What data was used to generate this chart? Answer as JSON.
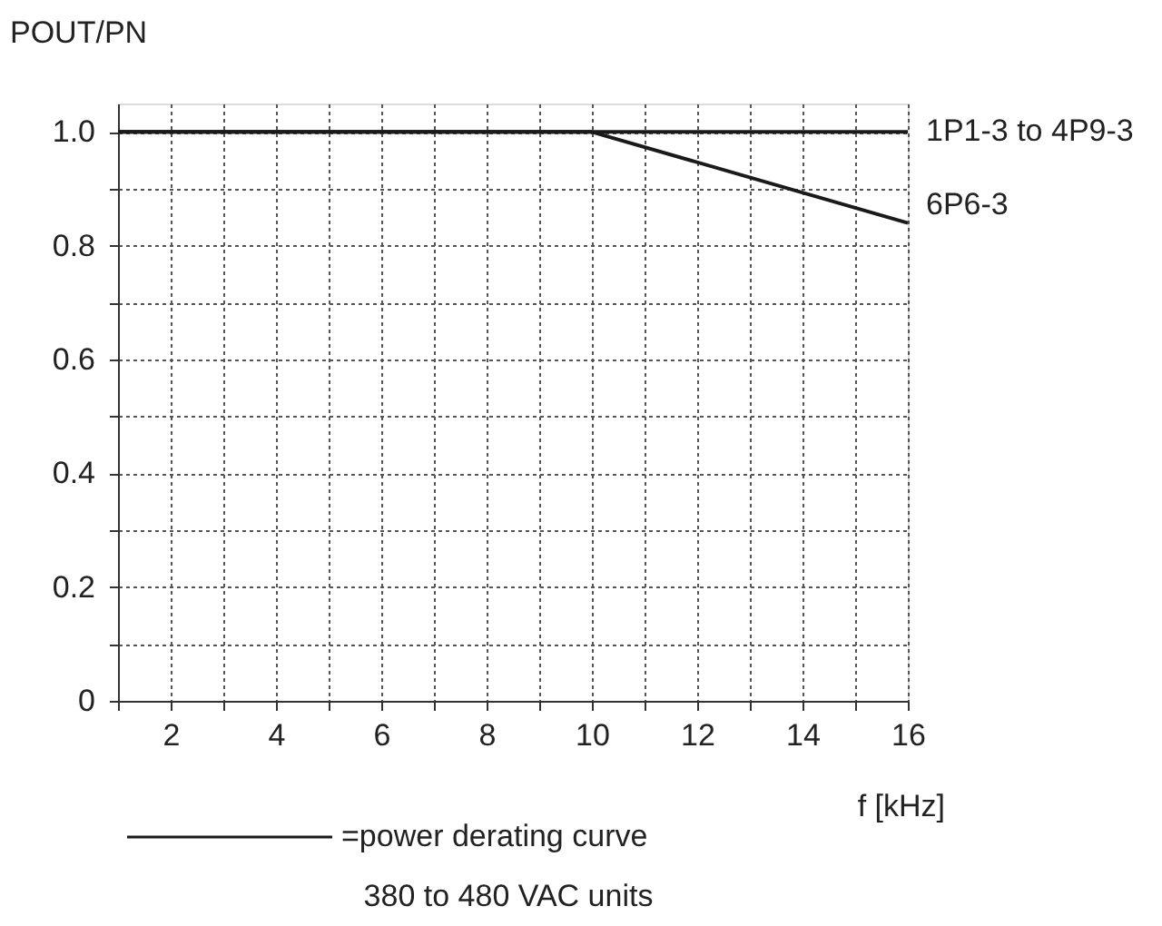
{
  "chart_data": {
    "type": "line",
    "ylabel": "POUT/PN",
    "xlabel": "f [kHz]",
    "x": [
      1,
      10,
      16
    ],
    "series": [
      {
        "name": "1P1-3 to 4P9-3",
        "color": "#1a1a1a",
        "values": [
          1.0,
          1.0,
          1.0
        ]
      },
      {
        "name": "6P6-3",
        "color": "#1a1a1a",
        "values": [
          1.0,
          1.0,
          0.84
        ]
      }
    ],
    "xlim": [
      1,
      16
    ],
    "xticks": [
      {
        "value": 1,
        "label": null
      },
      2,
      {
        "value": 3,
        "label": null
      },
      4,
      {
        "value": 5,
        "label": null
      },
      6,
      {
        "value": 7,
        "label": null
      },
      8,
      {
        "value": 9,
        "label": null
      },
      10,
      {
        "value": 11,
        "label": null
      },
      12,
      {
        "value": 13,
        "label": null
      },
      14,
      {
        "value": 15,
        "label": null
      },
      16
    ],
    "ylim": [
      0,
      1.05
    ],
    "yticks": [
      0,
      {
        "value": 0.1,
        "label": null
      },
      0.2,
      {
        "value": 0.3,
        "label": null
      },
      0.4,
      {
        "value": 0.5,
        "label": null
      },
      0.6,
      {
        "value": 0.7,
        "label": null
      },
      0.8,
      {
        "value": 0.9,
        "label": null
      },
      {
        "value": 1.0,
        "label": "1.0"
      }
    ],
    "grid": true,
    "marker": "none",
    "line_style": "solid",
    "annotations": [
      "=power derating curve",
      "380 to 480 VAC units"
    ]
  }
}
